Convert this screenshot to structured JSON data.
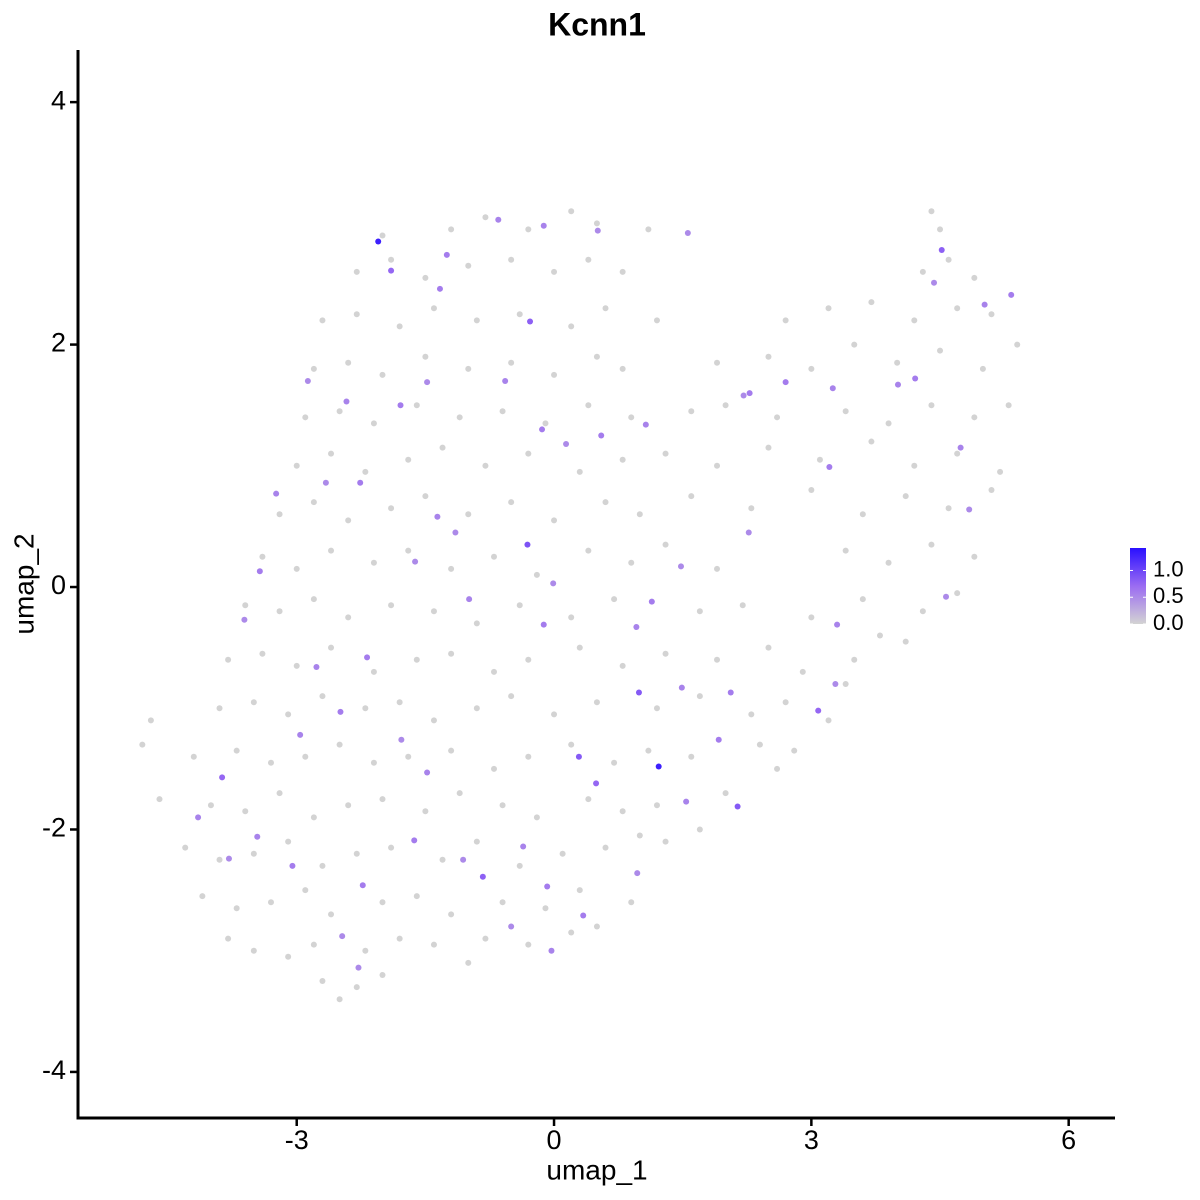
{
  "chart_data": {
    "type": "scatter",
    "title": "Kcnn1",
    "x_label": "umap_1",
    "y_label": "umap_2",
    "xlim": [
      -5.55,
      6.54
    ],
    "ylim": [
      -4.38,
      4.43
    ],
    "xticks": [
      -3,
      0,
      3,
      6
    ],
    "yticks": [
      -4,
      -2,
      0,
      2,
      4
    ],
    "color_range": [
      0,
      1.42
    ],
    "colors": [
      "#d3d3d3",
      "#9b6cf2",
      "#2a10ff"
    ],
    "color_ticks": [
      {
        "value": 0,
        "label": "0.0"
      },
      {
        "value": 0.5,
        "label": "0.5"
      },
      {
        "value": 1,
        "label": "1.0"
      }
    ],
    "x": [
      -2.5,
      -2.3,
      -2.0,
      -1.0,
      -2.7,
      -3.8,
      -3.5,
      -3.1,
      -2.8,
      -2.2,
      -1.8,
      -1.4,
      -0.8,
      -0.3,
      0.2,
      0.5,
      -4.1,
      -3.7,
      -3.3,
      -2.9,
      -2.6,
      -2.0,
      -1.6,
      -1.2,
      -0.6,
      -0.1,
      0.3,
      0.9,
      -4.3,
      -3.9,
      -3.5,
      -3.1,
      -2.7,
      -2.3,
      -1.9,
      -1.3,
      -0.9,
      -0.4,
      0.1,
      0.6,
      1.0,
      1.3,
      -4.6,
      -4.0,
      -3.6,
      -3.2,
      -2.8,
      -2.4,
      -2.0,
      -1.5,
      -1.1,
      -0.6,
      -0.2,
      0.4,
      0.8,
      1.2,
      1.7,
      2.0,
      -4.8,
      -4.7,
      -4.2,
      -3.7,
      -3.3,
      -2.9,
      -2.5,
      -2.1,
      -1.7,
      -1.2,
      -0.7,
      -0.3,
      0.2,
      0.7,
      1.1,
      1.6,
      2.4,
      2.8,
      2.6,
      -3.9,
      -3.5,
      -3.1,
      -2.7,
      -2.2,
      -1.8,
      -1.4,
      -0.9,
      -0.5,
      0.0,
      0.5,
      1.2,
      1.7,
      2.3,
      2.7,
      3.2,
      3.4,
      -3.8,
      -3.4,
      -3.0,
      -2.6,
      -2.1,
      -1.6,
      -1.2,
      -0.7,
      -0.3,
      0.3,
      0.8,
      1.3,
      1.9,
      2.5,
      2.9,
      3.5,
      3.8,
      4.1,
      -3.6,
      -3.2,
      -2.8,
      -2.4,
      -1.9,
      -1.4,
      -0.9,
      -0.4,
      0.2,
      0.7,
      1.7,
      2.2,
      3.0,
      3.6,
      4.3,
      4.7,
      -3.4,
      -3.0,
      -2.6,
      -2.1,
      -1.7,
      -1.2,
      -0.7,
      -0.2,
      0.4,
      0.9,
      1.3,
      1.9,
      3.4,
      3.9,
      4.4,
      4.9,
      -3.2,
      -2.8,
      -2.4,
      -1.9,
      -1.5,
      -1.0,
      -0.5,
      0.0,
      0.6,
      1.0,
      1.6,
      2.3,
      3.0,
      3.6,
      4.1,
      4.6,
      5.1,
      -3.0,
      -2.6,
      -2.2,
      -1.7,
      -1.3,
      -0.8,
      -0.3,
      0.3,
      0.8,
      1.3,
      1.9,
      2.5,
      3.1,
      3.7,
      4.2,
      4.7,
      5.2,
      -2.9,
      -2.5,
      -2.1,
      -1.6,
      -1.1,
      -0.6,
      -0.1,
      0.4,
      0.9,
      1.6,
      2.0,
      2.6,
      3.4,
      3.9,
      4.4,
      4.9,
      5.3,
      -2.8,
      -2.4,
      -2.0,
      -1.5,
      -1.0,
      -0.5,
      0.0,
      0.5,
      0.8,
      1.9,
      2.5,
      3.0,
      3.5,
      4.0,
      4.5,
      5.0,
      5.4,
      -2.7,
      -2.3,
      -1.8,
      -1.4,
      -0.9,
      -0.4,
      0.2,
      0.6,
      1.2,
      2.7,
      3.2,
      3.7,
      4.2,
      4.7,
      5.1,
      -2.3,
      -1.9,
      -1.5,
      -1.0,
      -0.5,
      0.0,
      0.4,
      0.8,
      4.3,
      4.6,
      4.9,
      -2.0,
      -1.2,
      -0.8,
      -0.3,
      0.2,
      0.5,
      1.1,
      4.5,
      4.4,
      1.56,
      -0.65,
      -1.33,
      -2.87,
      -3.24,
      -3.43,
      -3.61,
      -4.15,
      -2.23,
      -2.28,
      -2.96,
      -2.49,
      -1.78,
      -0.03,
      0.34,
      0.97,
      1.54,
      1.92,
      2.27,
      3.25,
      4.21,
      4.84,
      5.02,
      5.33,
      4.43,
      4.01,
      2.7,
      2.21,
      1.07,
      0.55,
      -0.01,
      -0.99,
      1.14,
      1.48,
      0.96,
      -0.12,
      -1.62,
      -1.36,
      -2.26,
      -2.66,
      -2.42,
      -1.79,
      -1.48,
      -0.57,
      -0.14,
      0.14,
      -1.48,
      -1.63,
      -1.06,
      -0.36,
      -0.08,
      -0.5,
      -2.77,
      -2.18,
      -3.79,
      -3.46,
      -3.05,
      -2.47,
      1.49,
      2.06,
      3.28,
      3.3,
      3.21,
      4.57,
      4.74,
      2.28,
      0.51,
      -0.12,
      -1.25,
      -1.15,
      0.49,
      -0.28,
      -0.83,
      4.52,
      -1.9,
      -3.87,
      3.08,
      0.99,
      0.29,
      2.14,
      -0.31,
      -2.05,
      1.22
    ],
    "values": [
      -3.4,
      -3.3,
      -3.2,
      -3.1,
      -3.25,
      -2.9,
      -3.0,
      -3.05,
      -2.95,
      -3.0,
      -2.9,
      -2.95,
      -2.9,
      -2.95,
      -2.85,
      -2.8,
      -2.55,
      -2.65,
      -2.6,
      -2.5,
      -2.7,
      -2.6,
      -2.55,
      -2.7,
      -2.6,
      -2.65,
      -2.5,
      -2.6,
      -2.15,
      -2.25,
      -2.2,
      -2.1,
      -2.3,
      -2.2,
      -2.15,
      -2.25,
      -2.1,
      -2.3,
      -2.2,
      -2.15,
      -2.05,
      -2.1,
      -1.75,
      -1.8,
      -1.85,
      -1.7,
      -1.9,
      -1.8,
      -1.75,
      -1.85,
      -1.7,
      -1.8,
      -1.9,
      -1.75,
      -1.85,
      -1.8,
      -2.0,
      -1.7,
      -1.3,
      -1.1,
      -1.4,
      -1.35,
      -1.45,
      -1.4,
      -1.3,
      -1.45,
      -1.4,
      -1.35,
      -1.5,
      -1.4,
      -1.3,
      -1.45,
      -1.35,
      -1.4,
      -1.3,
      -1.35,
      -1.5,
      -1.0,
      -0.95,
      -1.05,
      -0.9,
      -1.0,
      -0.95,
      -1.1,
      -1.0,
      -0.9,
      -1.05,
      -0.95,
      -1.0,
      -0.9,
      -1.05,
      -0.95,
      -1.1,
      -0.8,
      -0.6,
      -0.55,
      -0.65,
      -0.5,
      -0.7,
      -0.6,
      -0.55,
      -0.7,
      -0.6,
      -0.5,
      -0.65,
      -0.55,
      -0.6,
      -0.5,
      -0.7,
      -0.6,
      -0.4,
      -0.45,
      -0.15,
      -0.2,
      -0.1,
      -0.25,
      -0.15,
      -0.2,
      -0.3,
      -0.15,
      -0.25,
      -0.1,
      -0.2,
      -0.15,
      -0.25,
      -0.1,
      -0.2,
      -0.05,
      0.25,
      0.15,
      0.3,
      0.2,
      0.3,
      0.15,
      0.25,
      0.1,
      0.3,
      0.2,
      0.35,
      0.15,
      0.3,
      0.2,
      0.35,
      0.25,
      0.6,
      0.7,
      0.55,
      0.65,
      0.75,
      0.6,
      0.7,
      0.55,
      0.7,
      0.6,
      0.75,
      0.65,
      0.8,
      0.6,
      0.75,
      0.65,
      0.8,
      1.0,
      1.1,
      0.95,
      1.05,
      1.15,
      1.0,
      1.1,
      0.95,
      1.05,
      1.1,
      1.0,
      1.15,
      1.05,
      1.2,
      1.0,
      1.1,
      0.95,
      1.4,
      1.45,
      1.35,
      1.5,
      1.4,
      1.45,
      1.35,
      1.5,
      1.4,
      1.45,
      1.5,
      1.4,
      1.45,
      1.35,
      1.5,
      1.4,
      1.5,
      1.8,
      1.85,
      1.75,
      1.9,
      1.8,
      1.85,
      1.75,
      1.9,
      1.8,
      1.85,
      1.9,
      1.8,
      2.0,
      1.85,
      1.95,
      1.8,
      2.0,
      2.2,
      2.25,
      2.15,
      2.3,
      2.2,
      2.25,
      2.15,
      2.3,
      2.2,
      2.2,
      2.3,
      2.35,
      2.2,
      2.3,
      2.25,
      2.6,
      2.7,
      2.55,
      2.65,
      2.7,
      2.6,
      2.7,
      2.6,
      2.6,
      2.7,
      2.55,
      2.9,
      2.95,
      3.05,
      2.95,
      3.1,
      3.0,
      2.95,
      2.95,
      3.1,
      2.92,
      3.03,
      2.46,
      1.7,
      0.77,
      0.13,
      -0.27,
      -1.9,
      -2.46,
      -3.14,
      -1.22,
      -1.03,
      -1.26,
      -3.0,
      -2.71,
      -2.36,
      -1.77,
      -1.26,
      0.45,
      1.64,
      1.72,
      0.64,
      2.33,
      2.41,
      2.51,
      1.67,
      1.69,
      1.58,
      1.34,
      1.25,
      0.03,
      -0.1,
      -0.12,
      0.17,
      -0.33,
      -0.31,
      0.21,
      0.58,
      0.86,
      0.86,
      1.53,
      1.5,
      1.69,
      1.7,
      1.3,
      1.18,
      -1.53,
      -2.09,
      -2.25,
      -2.14,
      -2.47,
      -2.8,
      -0.66,
      -0.58,
      -2.24,
      -2.06,
      -2.3,
      -2.88,
      -0.83,
      -0.87,
      -0.8,
      -0.31,
      0.99,
      -0.08,
      1.15,
      1.6,
      2.94,
      2.98,
      2.74,
      0.45,
      -1.62,
      2.19,
      -2.39,
      2.78,
      2.61,
      -1.57,
      -1.02,
      -0.87,
      -1.4,
      -1.81,
      0.35,
      2.85,
      -1.48
    ],
    "expression": [
      0,
      0,
      0,
      0,
      0,
      0,
      0,
      0,
      0,
      0,
      0,
      0,
      0,
      0,
      0,
      0,
      0,
      0,
      0,
      0,
      0,
      0,
      0,
      0,
      0,
      0,
      0,
      0,
      0,
      0,
      0,
      0,
      0,
      0,
      0,
      0,
      0,
      0,
      0,
      0,
      0,
      0,
      0,
      0,
      0,
      0,
      0,
      0,
      0,
      0,
      0,
      0,
      0,
      0,
      0,
      0,
      0,
      0,
      0,
      0,
      0,
      0,
      0,
      0,
      0,
      0,
      0,
      0,
      0,
      0,
      0,
      0,
      0,
      0,
      0,
      0,
      0,
      0,
      0,
      0,
      0,
      0,
      0,
      0,
      0,
      0,
      0,
      0,
      0,
      0,
      0,
      0,
      0,
      0,
      0,
      0,
      0,
      0,
      0,
      0,
      0,
      0,
      0,
      0,
      0,
      0,
      0,
      0,
      0,
      0,
      0,
      0,
      0,
      0,
      0,
      0,
      0,
      0,
      0,
      0,
      0,
      0,
      0,
      0,
      0,
      0,
      0,
      0,
      0,
      0,
      0,
      0,
      0,
      0,
      0,
      0,
      0,
      0,
      0,
      0,
      0,
      0,
      0,
      0,
      0,
      0,
      0,
      0,
      0,
      0,
      0,
      0,
      0,
      0,
      0,
      0,
      0,
      0,
      0,
      0,
      0,
      0,
      0,
      0,
      0,
      0,
      0,
      0,
      0,
      0,
      0,
      0,
      0,
      0,
      0,
      0,
      0,
      0,
      0,
      0,
      0,
      0,
      0,
      0,
      0,
      0,
      0,
      0,
      0,
      0,
      0,
      0,
      0,
      0,
      0,
      0,
      0,
      0,
      0,
      0,
      0,
      0,
      0,
      0,
      0,
      0,
      0,
      0,
      0,
      0,
      0,
      0,
      0,
      0,
      0,
      0,
      0,
      0,
      0,
      0,
      0,
      0,
      0,
      0,
      0,
      0,
      0,
      0,
      0,
      0,
      0,
      0,
      0,
      0,
      0,
      0,
      0,
      0,
      0,
      0,
      0,
      0,
      0,
      0,
      0,
      0,
      0,
      0.5,
      0.55,
      0.6,
      0.5,
      0.55,
      0.6,
      0.5,
      0.55,
      0.6,
      0.5,
      0.55,
      0.6,
      0.5,
      0.55,
      0.6,
      0.5,
      0.55,
      0.6,
      0.5,
      0.55,
      0.6,
      0.5,
      0.55,
      0.6,
      0.5,
      0.55,
      0.6,
      0.5,
      0.55,
      0.6,
      0.5,
      0.55,
      0.6,
      0.5,
      0.55,
      0.6,
      0.5,
      0.55,
      0.6,
      0.5,
      0.55,
      0.6,
      0.5,
      0.55,
      0.6,
      0.5,
      0.55,
      0.6,
      0.5,
      0.55,
      0.6,
      0.5,
      0.55,
      0.6,
      0.5,
      0.55,
      0.6,
      0.5,
      0.55,
      0.6,
      0.5,
      0.55,
      0.6,
      0.5,
      0.55,
      0.6,
      0.5,
      0.55,
      0.6,
      0.5,
      0.75,
      0.8,
      0.8,
      0.8,
      0.75,
      0.75,
      0.75,
      0.85,
      0.85,
      0.85,
      0.9,
      1.3,
      1.3
    ]
  }
}
